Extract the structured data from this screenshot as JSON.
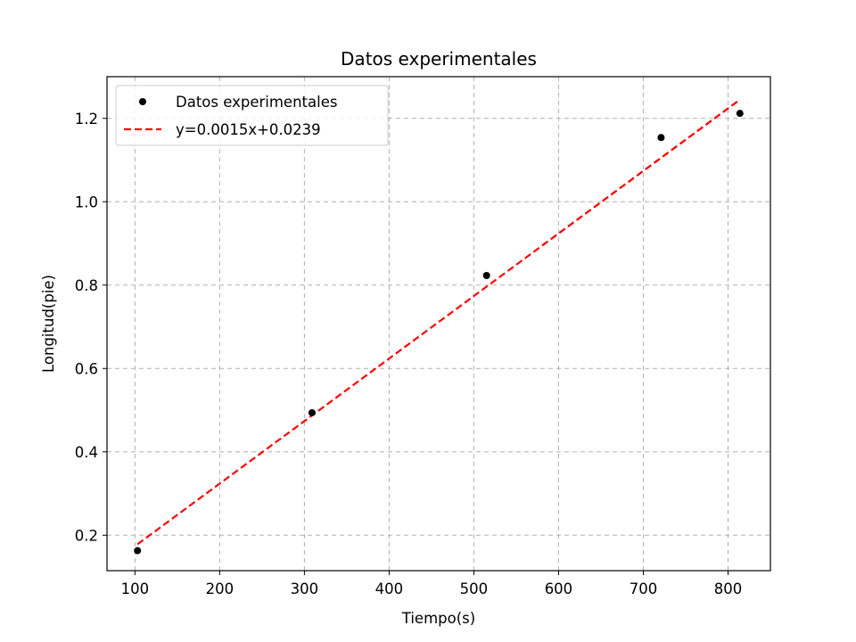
{
  "chart_data": {
    "type": "scatter",
    "title": "Datos experimentales",
    "xlabel": "Tiempo(s)",
    "ylabel": "Longitud(pie)",
    "xlim": [
      67,
      850
    ],
    "ylim": [
      0.115,
      1.3
    ],
    "xticks": [
      100,
      200,
      300,
      400,
      500,
      600,
      700,
      800
    ],
    "yticks": [
      0.2,
      0.4,
      0.6,
      0.8,
      1.0,
      1.2
    ],
    "ytick_labels": [
      "0.2",
      "0.4",
      "0.6",
      "0.8",
      "1.0",
      "1.2"
    ],
    "grid": true,
    "legend_position": "top-left",
    "series": [
      {
        "name": "Datos experimentales",
        "kind": "scatter",
        "color": "#000000",
        "x": [
          103,
          309,
          515,
          721,
          814
        ],
        "y": [
          0.163,
          0.494,
          0.823,
          1.154,
          1.212
        ]
      },
      {
        "name": "y=0.0015x+0.0239",
        "kind": "line",
        "style": "dashed",
        "color": "#ff0000",
        "x": [
          103,
          814
        ],
        "y": [
          0.1784,
          1.2449
        ]
      }
    ]
  }
}
